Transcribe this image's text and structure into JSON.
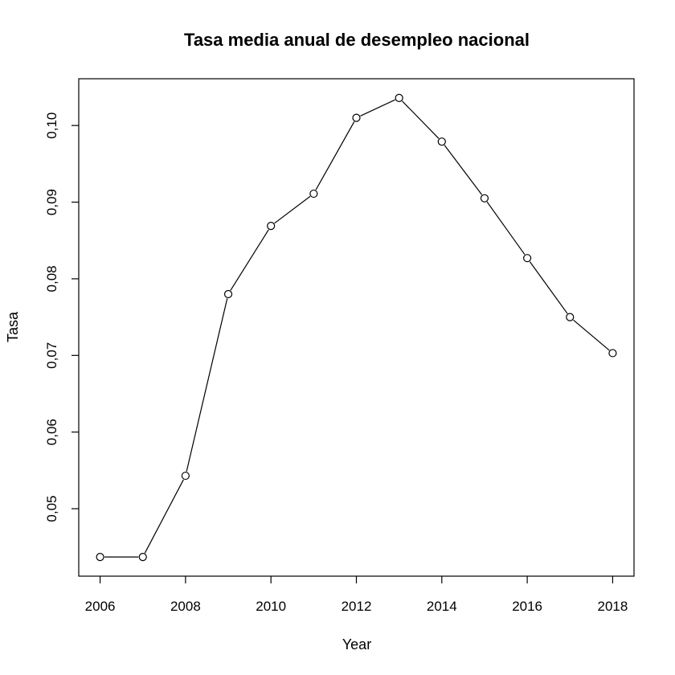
{
  "chart_data": {
    "type": "line",
    "title": "Tasa media anual de desempleo nacional",
    "xlabel": "Year",
    "ylabel": "Tasa",
    "x": [
      2006,
      2007,
      2008,
      2009,
      2010,
      2011,
      2012,
      2013,
      2014,
      2015,
      2016,
      2017,
      2018
    ],
    "values": [
      0.0437,
      0.0437,
      0.0543,
      0.078,
      0.0869,
      0.0911,
      0.101,
      0.1036,
      0.0979,
      0.0905,
      0.0827,
      0.075,
      0.0703
    ],
    "xlim": [
      2005.5,
      2018.5
    ],
    "ylim": [
      0.0412,
      0.1061
    ],
    "xticks": [
      2006,
      2008,
      2010,
      2012,
      2014,
      2016,
      2018
    ],
    "xtick_labels": [
      "2006",
      "2008",
      "2010",
      "2012",
      "2014",
      "2016",
      "2018"
    ],
    "yticks": [
      0.05,
      0.06,
      0.07,
      0.08,
      0.09,
      0.1
    ],
    "ytick_labels": [
      "0,05",
      "0,06",
      "0,07",
      "0,08",
      "0,09",
      "0,10"
    ],
    "grid": false,
    "marker": "open-circle",
    "line_color": "#000000"
  }
}
